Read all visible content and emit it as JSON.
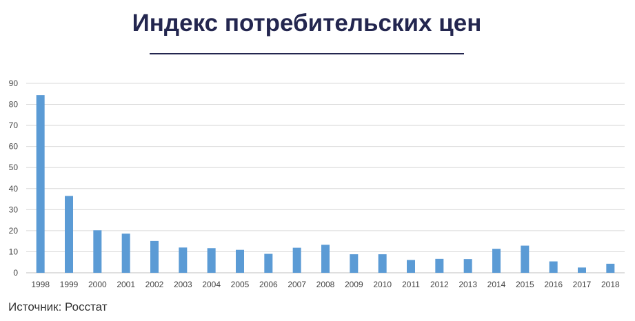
{
  "title": "Индекс потребительских цен",
  "source": "Источник: Росстат",
  "colors": {
    "title": "#23264f",
    "bar": "#5b9bd5",
    "grid": "#d9d9d9"
  },
  "chart_data": {
    "type": "bar",
    "title": "Индекс потребительских цен",
    "xlabel": "",
    "ylabel": "",
    "categories": [
      "1998",
      "1999",
      "2000",
      "2001",
      "2002",
      "2003",
      "2004",
      "2005",
      "2006",
      "2007",
      "2008",
      "2009",
      "2010",
      "2011",
      "2012",
      "2013",
      "2014",
      "2015",
      "2016",
      "2017",
      "2018"
    ],
    "values": [
      84.4,
      36.5,
      20.2,
      18.6,
      15.1,
      12.0,
      11.7,
      10.9,
      9.0,
      11.9,
      13.3,
      8.8,
      8.8,
      6.1,
      6.6,
      6.5,
      11.4,
      12.9,
      5.4,
      2.5,
      4.3
    ],
    "ylim": [
      0,
      90
    ],
    "yticks": [
      0,
      10,
      20,
      30,
      40,
      50,
      60,
      70,
      80,
      90
    ],
    "grid": true,
    "legend": "none"
  }
}
